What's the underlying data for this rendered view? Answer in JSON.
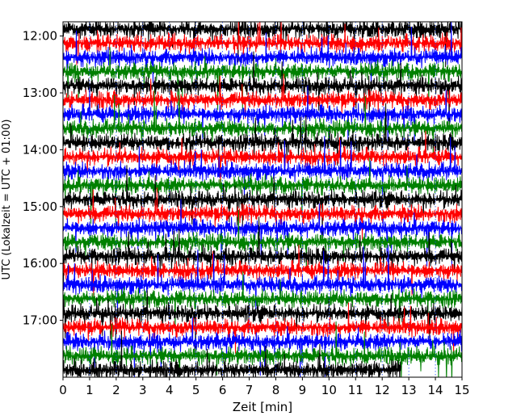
{
  "chart_data": {
    "type": "line",
    "title": "",
    "xlabel": "Zeit  [min]",
    "ylabel": "UTC (Lokalzeit = UTC + 01:00)",
    "xlim": [
      0,
      15
    ],
    "x_ticks": [
      0,
      1,
      2,
      3,
      4,
      5,
      6,
      7,
      8,
      9,
      10,
      11,
      12,
      13,
      14,
      15
    ],
    "x_tick_labels": [
      "0",
      "1",
      "2",
      "3",
      "4",
      "5",
      "6",
      "7",
      "8",
      "9",
      "10",
      "11",
      "12",
      "13",
      "14",
      "15"
    ],
    "y_ticks": [
      "12:00",
      "13:00",
      "14:00",
      "15:00",
      "16:00",
      "17:00"
    ],
    "start_time": "11:45",
    "end_time": "18:00",
    "trace_interval_minutes": 15,
    "trace_colors": [
      "#000000",
      "#ff0000",
      "#0000ff",
      "#008000"
    ],
    "last_trace_end_minutes": 12.7,
    "grid": true,
    "legend": "none"
  }
}
